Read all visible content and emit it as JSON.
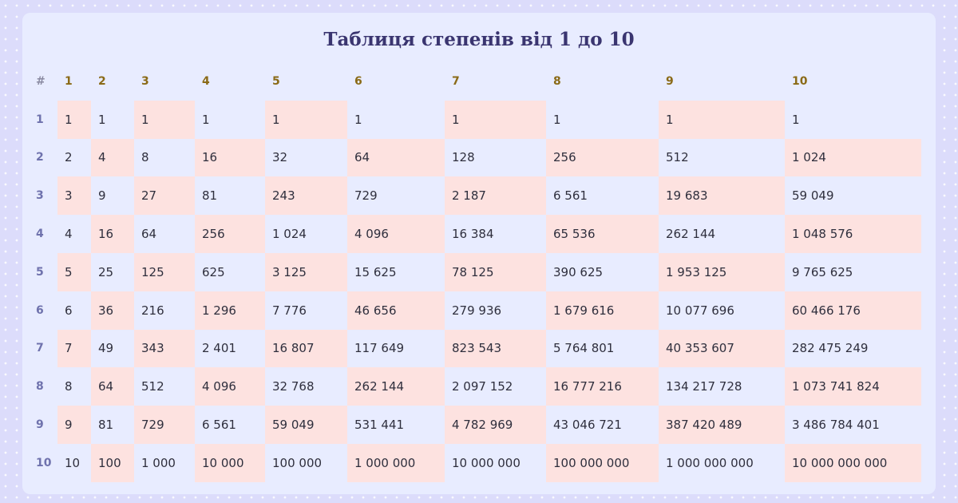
{
  "title": "Таблиця степенів від 1 до 10",
  "colors": {
    "background": "#dcdcfb",
    "card": "#e8ecff",
    "title": "#3a3570",
    "header_text": "#8a6a17",
    "row_label": "#6f72ad",
    "highlight": "#fde2e0"
  },
  "table": {
    "corner_label": "#",
    "columns": [
      "1",
      "2",
      "3",
      "4",
      "5",
      "6",
      "7",
      "8",
      "9",
      "10"
    ],
    "rows": [
      {
        "label": "1",
        "cells": [
          "1",
          "1",
          "1",
          "1",
          "1",
          "1",
          "1",
          "1",
          "1",
          "1"
        ]
      },
      {
        "label": "2",
        "cells": [
          "2",
          "4",
          "8",
          "16",
          "32",
          "64",
          "128",
          "256",
          "512",
          "1 024"
        ]
      },
      {
        "label": "3",
        "cells": [
          "3",
          "9",
          "27",
          "81",
          "243",
          "729",
          "2 187",
          "6 561",
          "19 683",
          "59 049"
        ]
      },
      {
        "label": "4",
        "cells": [
          "4",
          "16",
          "64",
          "256",
          "1 024",
          "4 096",
          "16 384",
          "65 536",
          "262 144",
          "1 048 576"
        ]
      },
      {
        "label": "5",
        "cells": [
          "5",
          "25",
          "125",
          "625",
          "3 125",
          "15 625",
          "78 125",
          "390 625",
          "1 953 125",
          "9 765 625"
        ]
      },
      {
        "label": "6",
        "cells": [
          "6",
          "36",
          "216",
          "1 296",
          "7 776",
          "46 656",
          "279 936",
          "1 679 616",
          "10 077 696",
          "60 466 176"
        ]
      },
      {
        "label": "7",
        "cells": [
          "7",
          "49",
          "343",
          "2 401",
          "16 807",
          "117 649",
          "823 543",
          "5 764 801",
          "40 353 607",
          "282 475 249"
        ]
      },
      {
        "label": "8",
        "cells": [
          "8",
          "64",
          "512",
          "4 096",
          "32 768",
          "262 144",
          "2 097 152",
          "16 777 216",
          "134 217 728",
          "1 073 741 824"
        ]
      },
      {
        "label": "9",
        "cells": [
          "9",
          "81",
          "729",
          "6 561",
          "59 049",
          "531 441",
          "4 782 969",
          "43 046 721",
          "387 420 489",
          "3 486 784 401"
        ]
      },
      {
        "label": "10",
        "cells": [
          "10",
          "100",
          "1 000",
          "10 000",
          "100 000",
          "1 000 000",
          "10 000 000",
          "100 000 000",
          "1 000 000 000",
          "10 000 000 000"
        ]
      }
    ]
  }
}
